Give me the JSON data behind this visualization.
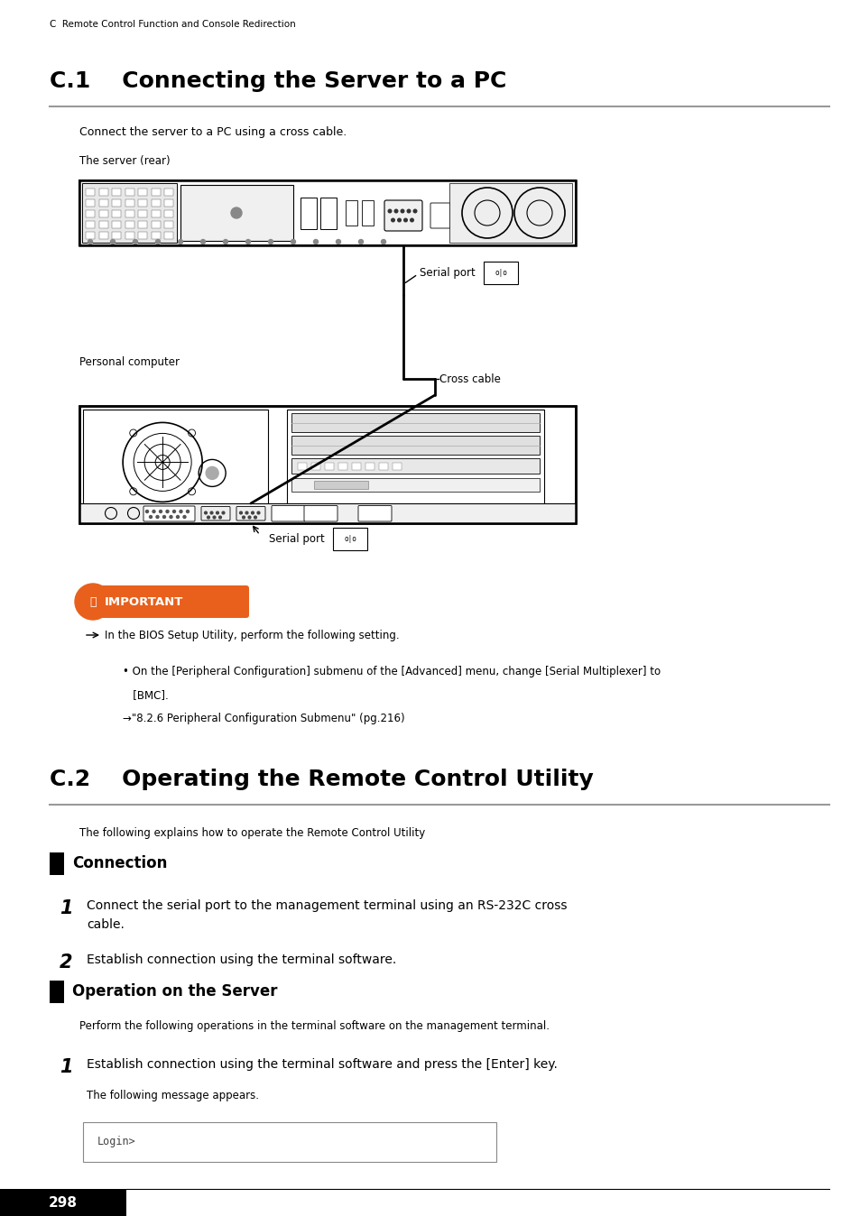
{
  "bg_color": "#ffffff",
  "page_width": 9.54,
  "page_height": 13.48,
  "dpi": 100,
  "header_text": "C  Remote Control Function and Console Redirection",
  "section1_number": "C.1",
  "section1_title": "    Connecting the Server to a PC",
  "section1_intro": "Connect the server to a PC using a cross cable.",
  "server_label": "The server (rear)",
  "serial_port_label1": "Serial port",
  "cross_cable_label": "Cross cable",
  "pc_label": "Personal computer",
  "serial_port_label2": "Serial port",
  "important_text": "IMPORTANT",
  "bullet1": "In the BIOS Setup Utility, perform the following setting.",
  "bullet1a": "• On the [Peripheral Configuration] submenu of the [Advanced] menu, change [Serial Multiplexer] to",
  "bullet1a2": "   [BMC].",
  "bullet1b": "→\"8.2.6 Peripheral Configuration Submenu\" (pg.216)",
  "section2_number": "C.2",
  "section2_title": "    Operating the Remote Control Utility",
  "section2_intro": "The following explains how to operate the Remote Control Utility",
  "subsection1": "Connection",
  "step1_num": "1",
  "step1_text": "Connect the serial port to the management terminal using an RS-232C cross\ncable.",
  "step2_num": "2",
  "step2_text": "Establish connection using the terminal software.",
  "subsection2": "Operation on the Server",
  "subsection2_intro": "Perform the following operations in the terminal software on the management terminal.",
  "step3_num": "1",
  "step3_text": "Establish connection using the terminal software and press the [Enter] key.",
  "step3_sub": "The following message appears.",
  "login_text": "Login>",
  "page_number": "298",
  "line_color": "#999999",
  "orange_color": "#e8601c",
  "black_color": "#000000",
  "light_gray": "#d8d8d8",
  "dark_gray": "#555555"
}
